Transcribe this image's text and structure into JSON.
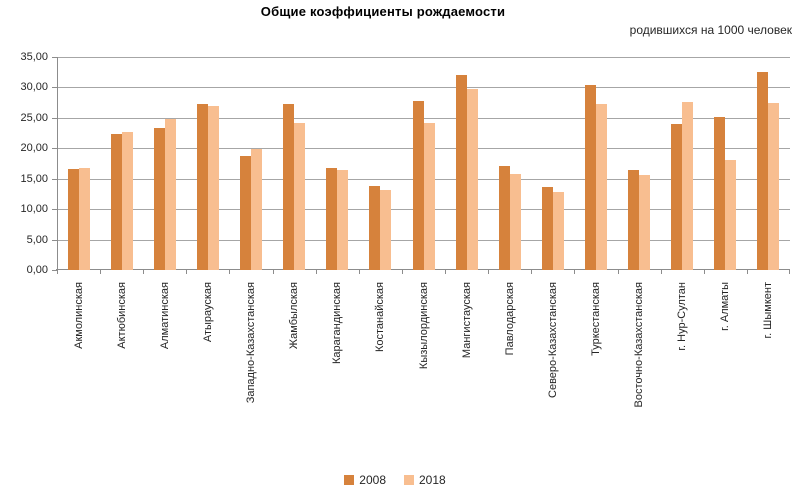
{
  "chart_data": {
    "type": "bar",
    "title": "Общие коэффициенты рождаемости",
    "subtitle": "родившихся на 1000 человек",
    "categories": [
      "Акмолинская",
      "Актюбинская",
      "Алматинская",
      "Атырауская",
      "Западно-Казахстанская",
      "Жамбылская",
      "Карагандинская",
      "Костанайская",
      "Кызылординская",
      "Мангистауская",
      "Павлодарская",
      "Северо-Казахстанская",
      "Туркестанская",
      "Восточно-Казахстанская",
      "г. Нур-Султан",
      "г. Алматы",
      "г. Шымкент"
    ],
    "series": [
      {
        "name": "2008",
        "color": "#D6823C",
        "values": [
          16.6,
          22.4,
          23.4,
          27.3,
          18.7,
          27.3,
          16.8,
          13.8,
          27.8,
          32.0,
          17.1,
          13.7,
          30.4,
          16.5,
          24.0,
          25.1,
          32.5
        ]
      },
      {
        "name": "2018",
        "color": "#F8BE90",
        "values": [
          16.7,
          22.6,
          24.8,
          27.0,
          19.9,
          24.2,
          16.4,
          13.1,
          24.2,
          29.8,
          15.7,
          12.9,
          27.3,
          15.6,
          27.6,
          18.0,
          27.4
        ]
      }
    ],
    "ylim": [
      0,
      35
    ],
    "ytick_step": 5,
    "ytick_labels": [
      "0,00",
      "5,00",
      "10,00",
      "15,00",
      "20,00",
      "25,00",
      "30,00",
      "35,00"
    ],
    "grid": true,
    "legend_position": "bottom",
    "colors": {
      "gridline": "#A6A6A6",
      "axis": "#8C8C8C",
      "text": "#262626"
    }
  }
}
